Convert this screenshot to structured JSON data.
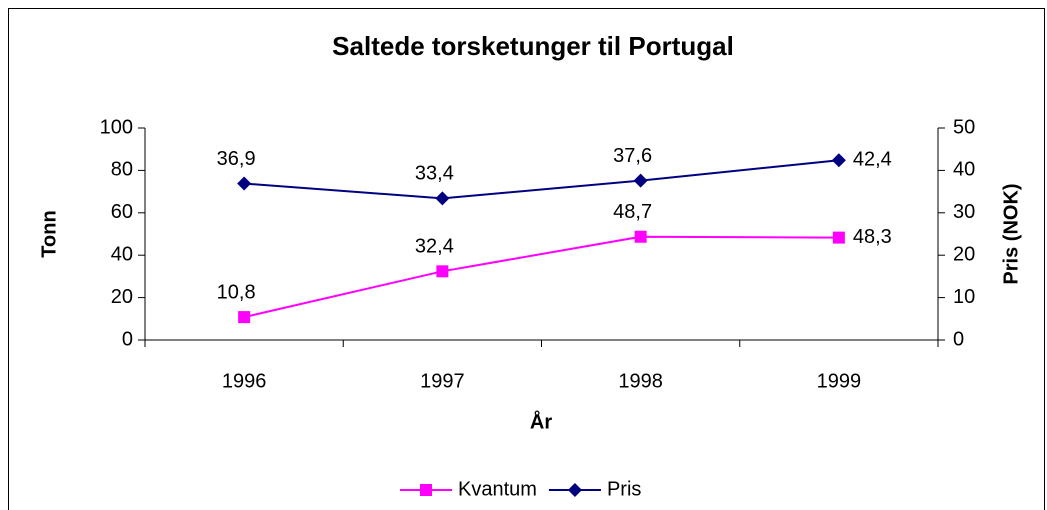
{
  "chart_data": {
    "type": "line",
    "title": "Saltede torsketunger til Portugal",
    "xlabel": "År",
    "ylabel": "Tonn",
    "y2label": "Pris (NOK)",
    "categories": [
      "1996",
      "1997",
      "1998",
      "1999"
    ],
    "series": [
      {
        "name": "Kvantum",
        "color": "#ff00ff",
        "marker": "square",
        "values": [
          10.8,
          32.4,
          48.7,
          48.3
        ],
        "value_labels": [
          "10,8",
          "32,4",
          "48,7",
          "48,3"
        ]
      },
      {
        "name": "Pris",
        "color": "#000080",
        "marker": "diamond",
        "axis": "y2",
        "values": [
          36.9,
          33.4,
          37.6,
          42.4
        ],
        "value_labels": [
          "36,9",
          "33,4",
          "37,6",
          "42,4"
        ]
      }
    ],
    "ylim": [
      0,
      100
    ],
    "yticks": [
      0,
      20,
      40,
      60,
      80,
      100
    ],
    "y2lim": [
      0,
      50
    ],
    "y2ticks": [
      0,
      10,
      20,
      30,
      40,
      50
    ],
    "legend": "bottom"
  }
}
